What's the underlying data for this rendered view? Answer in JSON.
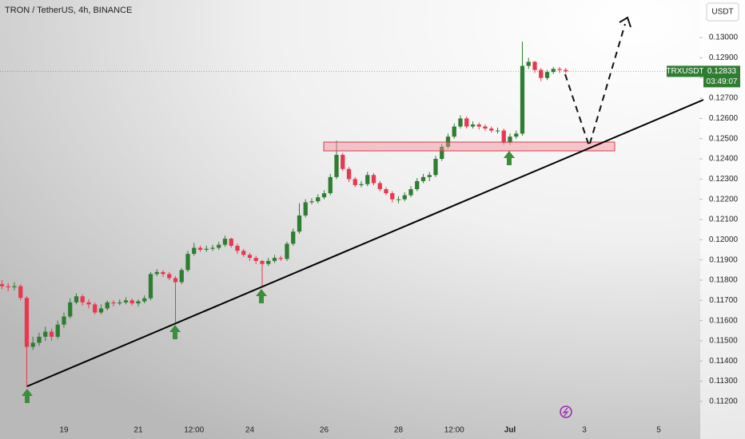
{
  "chart_data": {
    "type": "candlestick",
    "title": "TRON / TetherUS, 4h, BINANCE",
    "currency_button": "USDT",
    "symbol": "TRXUSDT",
    "last_price": 0.12833,
    "countdown": "03:49:07",
    "up_color": "#2e7d32",
    "down_color": "#e8384f",
    "xlim": [
      -10.32,
      102.58
    ],
    "xticks": [
      {
        "value": 0,
        "label": "19"
      },
      {
        "value": 12,
        "label": "21"
      },
      {
        "value": 21,
        "label": "12:00"
      },
      {
        "value": 30,
        "label": "24"
      },
      {
        "value": 42,
        "label": "26"
      },
      {
        "value": 54,
        "label": "28"
      },
      {
        "value": 63,
        "label": "12:00"
      },
      {
        "value": 72,
        "label": "Jul"
      },
      {
        "value": 84,
        "label": "3"
      },
      {
        "value": 96,
        "label": "5"
      }
    ],
    "ylim": [
      0.11093,
      0.13186
    ],
    "yticks": [
      {
        "value": 0.112,
        "label": "0.11200"
      },
      {
        "value": 0.113,
        "label": "0.11300"
      },
      {
        "value": 0.114,
        "label": "0.11400"
      },
      {
        "value": 0.115,
        "label": "0.11500"
      },
      {
        "value": 0.116,
        "label": "0.11600"
      },
      {
        "value": 0.117,
        "label": "0.11700"
      },
      {
        "value": 0.118,
        "label": "0.11800"
      },
      {
        "value": 0.119,
        "label": "0.11900"
      },
      {
        "value": 0.12,
        "label": "0.12000"
      },
      {
        "value": 0.121,
        "label": "0.12100"
      },
      {
        "value": 0.122,
        "label": "0.12200"
      },
      {
        "value": 0.123,
        "label": "0.12300"
      },
      {
        "value": 0.124,
        "label": "0.12400"
      },
      {
        "value": 0.125,
        "label": "0.12500"
      },
      {
        "value": 0.126,
        "label": "0.12600"
      },
      {
        "value": 0.127,
        "label": "0.12700"
      },
      {
        "value": 0.128,
        "label": "0.12800"
      },
      {
        "value": 0.129,
        "label": "0.12900"
      },
      {
        "value": 0.13,
        "label": "0.13000"
      }
    ],
    "x": [
      -10,
      -9,
      -8,
      -7,
      -6,
      -5,
      -4,
      -3,
      -2,
      -1,
      0,
      1,
      2,
      3,
      4,
      5,
      6,
      7,
      8,
      9,
      10,
      11,
      12,
      13,
      14,
      15,
      16,
      17,
      18,
      19,
      20,
      21,
      22,
      23,
      24,
      25,
      26,
      27,
      28,
      29,
      30,
      31,
      32,
      33,
      34,
      35,
      36,
      37,
      38,
      39,
      40,
      41,
      42,
      43,
      44,
      45,
      46,
      47,
      48,
      49,
      50,
      51,
      52,
      53,
      54,
      55,
      56,
      57,
      58,
      59,
      60,
      61,
      62,
      63,
      64,
      65,
      66,
      67,
      68,
      69,
      70,
      71,
      72,
      73,
      74,
      75,
      76,
      77,
      78,
      79,
      80,
      81
    ],
    "open": [
      0.1178,
      0.1177,
      0.11765,
      0.1177,
      0.11712,
      0.1147,
      0.1149,
      0.1152,
      0.11545,
      0.1152,
      0.1158,
      0.1162,
      0.1169,
      0.1172,
      0.1169,
      0.1168,
      0.1164,
      0.1166,
      0.1169,
      0.11685,
      0.1169,
      0.117,
      0.11685,
      0.11695,
      0.1171,
      0.1183,
      0.1184,
      0.1183,
      0.1181,
      0.1179,
      0.1185,
      0.1193,
      0.1196,
      0.1195,
      0.11955,
      0.1196,
      0.11975,
      0.12005,
      0.1197,
      0.11945,
      0.11925,
      0.1191,
      0.11895,
      0.1188,
      0.11895,
      0.1191,
      0.11905,
      0.1198,
      0.1204,
      0.1212,
      0.12185,
      0.1219,
      0.1221,
      0.1223,
      0.1231,
      0.1242,
      0.1235,
      0.123,
      0.1227,
      0.12275,
      0.1232,
      0.1228,
      0.1225,
      0.1223,
      0.122,
      0.122,
      0.1222,
      0.1225,
      0.1229,
      0.1231,
      0.1232,
      0.124,
      0.1246,
      0.1251,
      0.1256,
      0.126,
      0.1256,
      0.1257,
      0.1256,
      0.1255,
      0.1254,
      0.1254,
      0.1248,
      0.1251,
      0.12525,
      0.1286,
      0.1288,
      0.1284,
      0.128,
      0.1283,
      0.12845,
      0.1284
    ],
    "high": [
      0.118,
      0.11785,
      0.1179,
      0.1178,
      0.1172,
      0.1152,
      0.1154,
      0.1157,
      0.1156,
      0.116,
      0.1164,
      0.1171,
      0.11735,
      0.1173,
      0.11705,
      0.1169,
      0.1168,
      0.117,
      0.117,
      0.11705,
      0.11715,
      0.1171,
      0.11705,
      0.11725,
      0.1184,
      0.11855,
      0.1185,
      0.1184,
      0.1182,
      0.1186,
      0.11945,
      0.11985,
      0.1197,
      0.1197,
      0.11975,
      0.1199,
      0.1202,
      0.1201,
      0.1198,
      0.11955,
      0.11935,
      0.1192,
      0.119,
      0.1191,
      0.11925,
      0.1192,
      0.1199,
      0.12055,
      0.1218,
      0.122,
      0.12205,
      0.12225,
      0.12245,
      0.12325,
      0.1249,
      0.1243,
      0.1236,
      0.1231,
      0.1229,
      0.12335,
      0.1233,
      0.1229,
      0.1226,
      0.1224,
      0.12215,
      0.12235,
      0.12265,
      0.12305,
      0.12325,
      0.12335,
      0.12415,
      0.12475,
      0.12525,
      0.12575,
      0.12615,
      0.1261,
      0.12585,
      0.1258,
      0.1257,
      0.1256,
      0.12555,
      0.1255,
      0.12525,
      0.1254,
      0.1298,
      0.129,
      0.12885,
      0.1285,
      0.1284,
      0.12855,
      0.12855,
      0.1285
    ],
    "low": [
      0.11755,
      0.11745,
      0.1175,
      0.117,
      0.1127,
      0.11455,
      0.11475,
      0.115,
      0.115,
      0.1151,
      0.11565,
      0.1161,
      0.1168,
      0.11675,
      0.1166,
      0.1163,
      0.1163,
      0.1165,
      0.1167,
      0.11675,
      0.1168,
      0.11675,
      0.1167,
      0.11685,
      0.117,
      0.1182,
      0.11815,
      0.118,
      0.1159,
      0.1178,
      0.1184,
      0.1192,
      0.1194,
      0.1194,
      0.11945,
      0.1195,
      0.11965,
      0.1196,
      0.1193,
      0.11915,
      0.11895,
      0.1188,
      0.1177,
      0.1187,
      0.11885,
      0.11895,
      0.11895,
      0.1197,
      0.1203,
      0.1211,
      0.12175,
      0.1218,
      0.122,
      0.1222,
      0.123,
      0.1234,
      0.12285,
      0.1226,
      0.1226,
      0.12265,
      0.1227,
      0.1224,
      0.1222,
      0.12185,
      0.1218,
      0.1219,
      0.1221,
      0.1224,
      0.1228,
      0.1229,
      0.1231,
      0.1239,
      0.1245,
      0.125,
      0.1255,
      0.1255,
      0.1255,
      0.12545,
      0.1254,
      0.1253,
      0.12525,
      0.1247,
      0.1247,
      0.125,
      0.12515,
      0.12845,
      0.12825,
      0.12785,
      0.1279,
      0.1282,
      0.12825,
      0.12825
    ],
    "close": [
      0.1177,
      0.11765,
      0.1177,
      0.11712,
      0.1147,
      0.1149,
      0.1152,
      0.11545,
      0.1152,
      0.1158,
      0.1162,
      0.1169,
      0.1172,
      0.1169,
      0.1168,
      0.1164,
      0.1166,
      0.1169,
      0.11685,
      0.1169,
      0.117,
      0.11685,
      0.11695,
      0.1171,
      0.1183,
      0.1184,
      0.1183,
      0.1181,
      0.1179,
      0.1185,
      0.1193,
      0.1196,
      0.1195,
      0.11955,
      0.1196,
      0.11975,
      0.12005,
      0.1197,
      0.11945,
      0.11925,
      0.1191,
      0.11895,
      0.1188,
      0.11895,
      0.1191,
      0.11905,
      0.1198,
      0.1204,
      0.1212,
      0.12185,
      0.1219,
      0.1221,
      0.1223,
      0.1231,
      0.1242,
      0.1235,
      0.123,
      0.1227,
      0.12275,
      0.1232,
      0.1228,
      0.1225,
      0.1223,
      0.122,
      0.122,
      0.1222,
      0.1225,
      0.1229,
      0.1231,
      0.1232,
      0.124,
      0.1246,
      0.1251,
      0.1256,
      0.126,
      0.1256,
      0.1257,
      0.1256,
      0.1255,
      0.1254,
      0.1254,
      0.1248,
      0.1251,
      0.12525,
      0.1286,
      0.1288,
      0.1284,
      0.128,
      0.1283,
      0.12845,
      0.1284,
      0.12833
    ]
  }
}
